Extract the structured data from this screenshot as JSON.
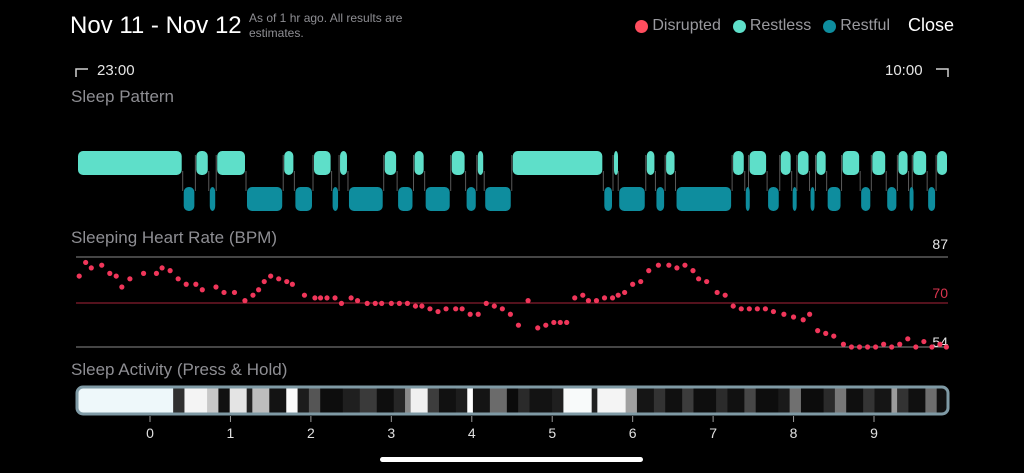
{
  "header": {
    "title": "Nov 11 - Nov 12",
    "note": "As of 1 hr ago. All results are estimates.",
    "close_label": "Close"
  },
  "legend": [
    {
      "name": "Disrupted",
      "color": "#ff4d5e"
    },
    {
      "name": "Restless",
      "color": "#5edfc9"
    },
    {
      "name": "Restful",
      "color": "#0e8d9e"
    }
  ],
  "time_range": {
    "start": "23:00",
    "end": "10:00"
  },
  "sections": {
    "sleep_pattern": "Sleep Pattern",
    "heart_rate": "Sleeping Heart Rate (BPM)",
    "activity": "Sleep Activity (Press & Hold)"
  },
  "sleep_pattern": {
    "colors": {
      "restless": "#5edfc9",
      "restful": "#0e8d9e"
    },
    "segments": [
      {
        "s": "restless",
        "t0": -0.92,
        "t1": 0.5
      },
      {
        "s": "restful",
        "t0": 0.5,
        "t1": 0.67
      },
      {
        "s": "restless",
        "t0": 0.67,
        "t1": 0.85
      },
      {
        "s": "restful",
        "t0": 0.85,
        "t1": 0.95
      },
      {
        "s": "restless",
        "t0": 0.95,
        "t1": 1.35
      },
      {
        "s": "restful",
        "t0": 1.35,
        "t1": 1.85
      },
      {
        "s": "restless",
        "t0": 1.85,
        "t1": 2.0
      },
      {
        "s": "restful",
        "t0": 2.0,
        "t1": 2.25
      },
      {
        "s": "restless",
        "t0": 2.25,
        "t1": 2.5
      },
      {
        "s": "restful",
        "t0": 2.5,
        "t1": 2.6
      },
      {
        "s": "restless",
        "t0": 2.6,
        "t1": 2.72
      },
      {
        "s": "restful",
        "t0": 2.72,
        "t1": 3.2
      },
      {
        "s": "restless",
        "t0": 3.2,
        "t1": 3.38
      },
      {
        "s": "restful",
        "t0": 3.38,
        "t1": 3.6
      },
      {
        "s": "restless",
        "t0": 3.6,
        "t1": 3.75
      },
      {
        "s": "restful",
        "t0": 3.75,
        "t1": 4.1
      },
      {
        "s": "restless",
        "t0": 4.1,
        "t1": 4.3
      },
      {
        "s": "restful",
        "t0": 4.3,
        "t1": 4.45
      },
      {
        "s": "restless",
        "t0": 4.45,
        "t1": 4.55
      },
      {
        "s": "restful",
        "t0": 4.55,
        "t1": 4.92
      },
      {
        "s": "restless",
        "t0": 4.92,
        "t1": 6.15
      },
      {
        "s": "restful",
        "t0": 6.15,
        "t1": 6.28
      },
      {
        "s": "restless",
        "t0": 6.28,
        "t1": 6.35
      },
      {
        "s": "restful",
        "t0": 6.35,
        "t1": 6.72
      },
      {
        "s": "restless",
        "t0": 6.72,
        "t1": 6.85
      },
      {
        "s": "restful",
        "t0": 6.85,
        "t1": 6.98
      },
      {
        "s": "restless",
        "t0": 6.98,
        "t1": 7.12
      },
      {
        "s": "restful",
        "t0": 7.12,
        "t1": 7.88
      },
      {
        "s": "restless",
        "t0": 7.88,
        "t1": 8.05
      },
      {
        "s": "restful",
        "t0": 8.05,
        "t1": 8.1
      },
      {
        "s": "restless",
        "t0": 8.1,
        "t1": 8.35
      },
      {
        "s": "restful",
        "t0": 8.35,
        "t1": 8.52
      },
      {
        "s": "restless",
        "t0": 8.52,
        "t1": 8.68
      },
      {
        "s": "restful",
        "t0": 8.68,
        "t1": 8.75
      },
      {
        "s": "restless",
        "t0": 8.75,
        "t1": 8.92
      },
      {
        "s": "restful",
        "t0": 8.92,
        "t1": 9.0
      },
      {
        "s": "restless",
        "t0": 9.0,
        "t1": 9.15
      },
      {
        "s": "restful",
        "t0": 9.15,
        "t1": 9.35
      },
      {
        "s": "restless",
        "t0": 9.35,
        "t1": 9.6
      },
      {
        "s": "restful",
        "t0": 9.6,
        "t1": 9.75
      },
      {
        "s": "restless",
        "t0": 9.75,
        "t1": 9.95
      },
      {
        "s": "restful",
        "t0": 9.95,
        "t1": 10.1
      },
      {
        "s": "restless",
        "t0": 10.1,
        "t1": 10.25
      },
      {
        "s": "restful",
        "t0": 10.25,
        "t1": 10.3
      },
      {
        "s": "restless",
        "t0": 10.3,
        "t1": 10.5
      },
      {
        "s": "restful",
        "t0": 10.5,
        "t1": 10.62
      },
      {
        "s": "restless",
        "t0": 10.62,
        "t1": 10.78
      }
    ]
  },
  "chart_data": {
    "type": "scatter",
    "xlabel": "",
    "ylabel": "",
    "y_ref_lines": [
      87,
      70,
      54
    ],
    "y_ref_labels": [
      "87",
      "70",
      "54"
    ],
    "ylim": [
      53,
      88
    ],
    "xlim": [
      -0.92,
      9.92
    ],
    "x_ticks": [
      0,
      1,
      2,
      3,
      4,
      5,
      6,
      7,
      8,
      9
    ],
    "x_tick_labels": [
      "0",
      "1",
      "2",
      "3",
      "4",
      "5",
      "6",
      "7",
      "8",
      "9"
    ],
    "point_color": "#f0365a",
    "points": [
      [
        -0.88,
        80
      ],
      [
        -0.8,
        85
      ],
      [
        -0.73,
        83
      ],
      [
        -0.6,
        84
      ],
      [
        -0.5,
        81
      ],
      [
        -0.42,
        80
      ],
      [
        -0.35,
        76
      ],
      [
        -0.25,
        79
      ],
      [
        -0.08,
        81
      ],
      [
        0.08,
        81
      ],
      [
        0.15,
        83
      ],
      [
        0.25,
        82
      ],
      [
        0.35,
        79
      ],
      [
        0.45,
        77
      ],
      [
        0.57,
        77
      ],
      [
        0.65,
        75
      ],
      [
        0.82,
        76
      ],
      [
        0.92,
        74
      ],
      [
        1.05,
        74
      ],
      [
        1.18,
        71
      ],
      [
        1.28,
        73
      ],
      [
        1.35,
        75
      ],
      [
        1.42,
        78
      ],
      [
        1.5,
        80
      ],
      [
        1.6,
        79
      ],
      [
        1.7,
        78
      ],
      [
        1.77,
        77
      ],
      [
        1.92,
        73
      ],
      [
        2.05,
        72
      ],
      [
        2.12,
        72
      ],
      [
        2.2,
        72
      ],
      [
        2.3,
        72
      ],
      [
        2.38,
        70
      ],
      [
        2.5,
        72
      ],
      [
        2.58,
        71
      ],
      [
        2.7,
        70
      ],
      [
        2.8,
        70
      ],
      [
        2.88,
        70
      ],
      [
        3.0,
        70
      ],
      [
        3.1,
        70
      ],
      [
        3.2,
        70
      ],
      [
        3.3,
        69
      ],
      [
        3.38,
        69
      ],
      [
        3.48,
        68
      ],
      [
        3.58,
        67
      ],
      [
        3.68,
        68
      ],
      [
        3.8,
        68
      ],
      [
        3.88,
        68
      ],
      [
        3.98,
        66
      ],
      [
        4.08,
        66
      ],
      [
        4.18,
        70
      ],
      [
        4.28,
        69
      ],
      [
        4.38,
        68
      ],
      [
        4.48,
        66
      ],
      [
        4.58,
        62
      ],
      [
        4.7,
        71
      ],
      [
        4.82,
        61
      ],
      [
        4.92,
        62
      ],
      [
        5.02,
        63
      ],
      [
        5.1,
        63
      ],
      [
        5.18,
        63
      ],
      [
        5.28,
        72
      ],
      [
        5.38,
        73
      ],
      [
        5.45,
        71
      ],
      [
        5.55,
        71
      ],
      [
        5.65,
        72
      ],
      [
        5.75,
        72
      ],
      [
        5.82,
        73
      ],
      [
        5.9,
        74
      ],
      [
        6.0,
        77
      ],
      [
        6.1,
        78
      ],
      [
        6.2,
        82
      ],
      [
        6.32,
        84
      ],
      [
        6.45,
        84
      ],
      [
        6.55,
        83
      ],
      [
        6.65,
        84
      ],
      [
        6.75,
        82
      ],
      [
        6.82,
        79
      ],
      [
        6.92,
        78
      ],
      [
        7.05,
        74
      ],
      [
        7.15,
        73
      ],
      [
        7.25,
        69
      ],
      [
        7.35,
        68
      ],
      [
        7.45,
        68
      ],
      [
        7.55,
        68
      ],
      [
        7.65,
        68
      ],
      [
        7.75,
        67
      ],
      [
        7.88,
        66
      ],
      [
        8.0,
        65
      ],
      [
        8.12,
        64
      ],
      [
        8.2,
        66
      ],
      [
        8.3,
        60
      ],
      [
        8.4,
        59
      ],
      [
        8.5,
        58
      ],
      [
        8.62,
        55
      ],
      [
        8.72,
        54
      ],
      [
        8.82,
        54
      ],
      [
        8.92,
        54
      ],
      [
        9.02,
        54
      ],
      [
        9.12,
        55
      ],
      [
        9.22,
        54
      ],
      [
        9.32,
        55
      ],
      [
        9.42,
        57
      ],
      [
        9.52,
        54
      ],
      [
        9.62,
        56
      ],
      [
        9.72,
        54
      ],
      [
        9.82,
        55
      ],
      [
        9.9,
        54
      ]
    ]
  },
  "activity": {
    "bands": [
      [
        "#eef8fa",
        0.17
      ],
      [
        "#303030",
        0.02
      ],
      [
        "#f4f4f4",
        0.04
      ],
      [
        "#c8c8c8",
        0.02
      ],
      [
        "#111",
        0.02
      ],
      [
        "#e4e4e4",
        0.03
      ],
      [
        "#222",
        0.01
      ],
      [
        "#bdbdbd",
        0.03
      ],
      [
        "#131313",
        0.03
      ],
      [
        "#fafafa",
        0.02
      ],
      [
        "#1c1c1c",
        0.02
      ],
      [
        "#555",
        0.02
      ],
      [
        "#0d0d0d",
        0.04
      ],
      [
        "#1f1f1f",
        0.03
      ],
      [
        "#3a3a3a",
        0.03
      ],
      [
        "#0e0e0e",
        0.03
      ],
      [
        "#262626",
        0.02
      ],
      [
        "#8a8a8a",
        0.01
      ],
      [
        "#f0f0f0",
        0.03
      ],
      [
        "#3d3d3d",
        0.02
      ],
      [
        "#111",
        0.03
      ],
      [
        "#1d1d1d",
        0.02
      ],
      [
        "#fefefe",
        0.01
      ],
      [
        "#141414",
        0.03
      ],
      [
        "#6b6b6b",
        0.03
      ],
      [
        "#0b0b0b",
        0.02
      ],
      [
        "#2a2a2a",
        0.02
      ],
      [
        "#131313",
        0.04
      ],
      [
        "#1f1f1f",
        0.02
      ],
      [
        "#f8fafa",
        0.05
      ],
      [
        "#202020",
        0.01
      ],
      [
        "#f4f4f4",
        0.05
      ],
      [
        "#a0a0a0",
        0.02
      ],
      [
        "#151515",
        0.03
      ],
      [
        "#333",
        0.02
      ],
      [
        "#101010",
        0.03
      ],
      [
        "#3c3c3c",
        0.02
      ],
      [
        "#0e0e0e",
        0.04
      ],
      [
        "#2b2b2b",
        0.02
      ],
      [
        "#111",
        0.03
      ],
      [
        "#474747",
        0.02
      ],
      [
        "#0d0d0d",
        0.04
      ],
      [
        "#1a1a1a",
        0.02
      ],
      [
        "#707070",
        0.02
      ],
      [
        "#0c0c0c",
        0.04
      ],
      [
        "#2a2a2a",
        0.02
      ],
      [
        "#777",
        0.02
      ],
      [
        "#0f0f0f",
        0.03
      ],
      [
        "#343434",
        0.02
      ],
      [
        "#151515",
        0.03
      ],
      [
        "#9c9c9c",
        0.01
      ],
      [
        "#333",
        0.02
      ],
      [
        "#101010",
        0.03
      ],
      [
        "#6e6e6e",
        0.02
      ],
      [
        "#111",
        0.02
      ]
    ]
  }
}
